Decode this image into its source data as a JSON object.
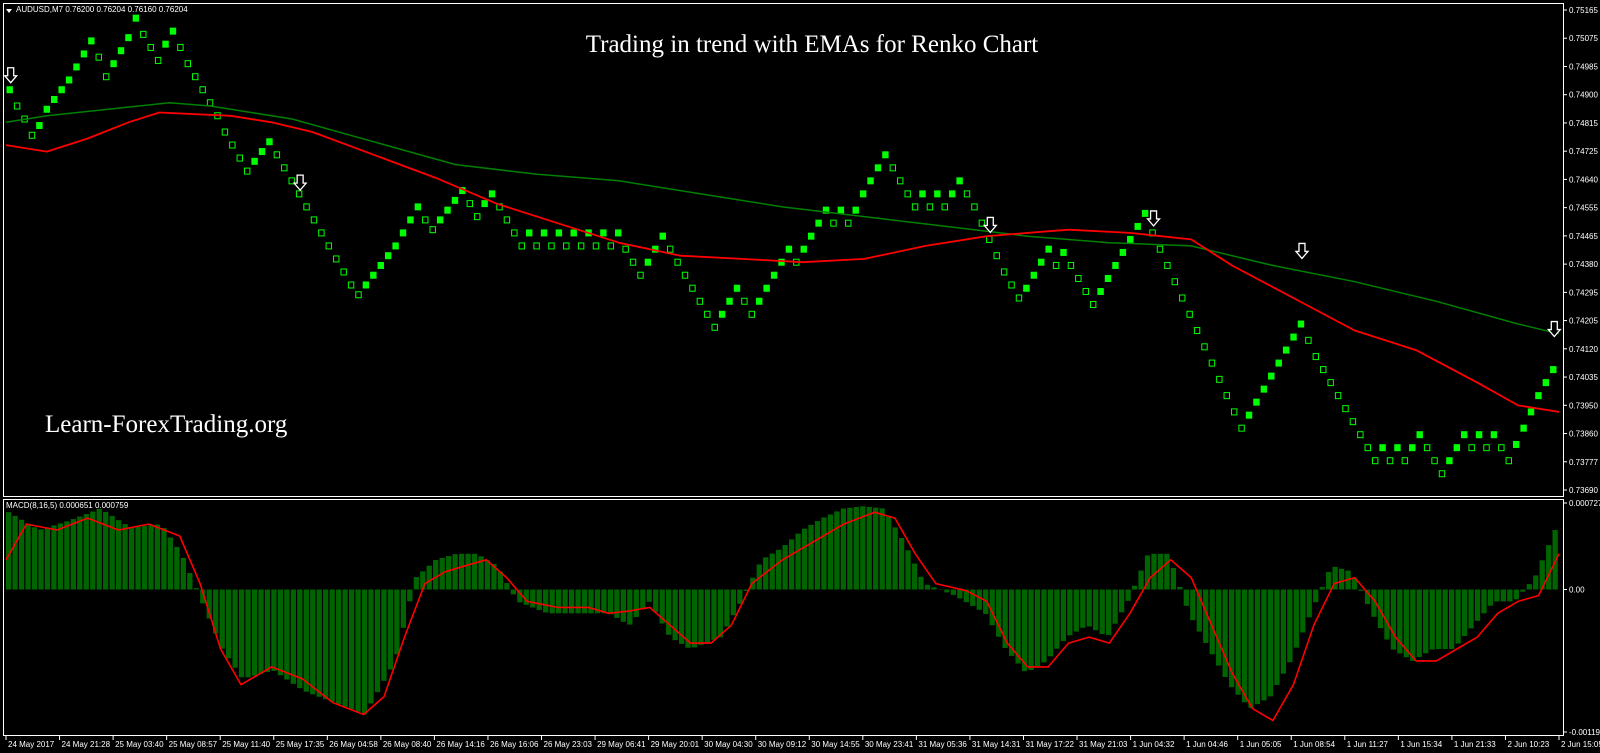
{
  "main_panel": {
    "symbol_header": "AUDUSD,M7  0.76200 0.76204 0.76160 0.76204",
    "title": "Trading in trend with EMAs for Renko Chart",
    "watermark": "Learn-ForexTrading.org",
    "y_ticks": [
      "0.75165",
      "0.75075",
      "0.74985",
      "0.74900",
      "0.74815",
      "0.74725",
      "0.74640",
      "0.74555",
      "0.74465",
      "0.74380",
      "0.74295",
      "0.74205",
      "0.74120",
      "0.74035",
      "0.73950",
      "0.73860",
      "0.73777",
      "0.73690"
    ]
  },
  "macd_panel": {
    "header": "MACD(8,16,5) 0.000651 0.000759",
    "y_ticks": [
      "0.000727",
      "0.00",
      "-0.001197"
    ]
  },
  "x_ticks": [
    "24 May 2017",
    "24 May 21:28",
    "25 May 03:40",
    "25 May 08:57",
    "25 May 11:40",
    "25 May 17:35",
    "26 May 04:58",
    "26 May 08:40",
    "26 May 14:16",
    "26 May 16:06",
    "26 May 23:03",
    "29 May 06:41",
    "29 May 20:01",
    "30 May 04:30",
    "30 May 09:12",
    "30 May 14:55",
    "30 May 23:41",
    "31 May 05:36",
    "31 May 14:31",
    "31 May 17:22",
    "31 May 21:03",
    "1 Jun 04:32",
    "1 Jun 04:46",
    "1 Jun 05:05",
    "1 Jun 08:54",
    "1 Jun 11:27",
    "1 Jun 15:34",
    "1 Jun 21:33",
    "2 Jun 10:23",
    "2 Jun 15:05"
  ],
  "colors": {
    "background": "#000000",
    "bull_brick": "#00ff00",
    "bear_brick": "#00ff00",
    "ema_fast": "#ff0000",
    "ema_slow": "#008000",
    "macd_histogram": "#006400",
    "macd_signal": "#ff0000",
    "signal_arrow": "#ffffff",
    "grid": "#ffffff"
  },
  "chart_data": [
    {
      "type": "renko",
      "symbol": "AUDUSD",
      "timeframe": "M7",
      "title": "Trading in trend with EMAs for Renko Chart",
      "ylim": [
        0.7369,
        0.75165
      ],
      "brick_size": 9e-05,
      "price_series": [
        0.7492,
        0.7487,
        0.7483,
        0.7478,
        0.7481,
        0.7486,
        0.7489,
        0.7492,
        0.7495,
        0.7499,
        0.7503,
        0.7507,
        0.7502,
        0.7496,
        0.75,
        0.7504,
        0.7508,
        0.7514,
        0.7509,
        0.7505,
        0.7501,
        0.7506,
        0.751,
        0.7505,
        0.75,
        0.7496,
        0.7492,
        0.7488,
        0.7484,
        0.7479,
        0.7475,
        0.7471,
        0.7467,
        0.747,
        0.7473,
        0.7476,
        0.7472,
        0.7468,
        0.7464,
        0.746,
        0.7456,
        0.7452,
        0.7448,
        0.7444,
        0.744,
        0.7436,
        0.7432,
        0.7429,
        0.7432,
        0.7435,
        0.7438,
        0.7441,
        0.7444,
        0.7448,
        0.7452,
        0.7456,
        0.7452,
        0.7449,
        0.7452,
        0.7455,
        0.7458,
        0.7461,
        0.7457,
        0.7453,
        0.7457,
        0.746,
        0.7456,
        0.7452,
        0.7448,
        0.7444,
        0.7448,
        0.7444,
        0.7448,
        0.7444,
        0.7448,
        0.7444,
        0.7448,
        0.7444,
        0.7448,
        0.7444,
        0.7448,
        0.7444,
        0.7448,
        0.7443,
        0.7439,
        0.7435,
        0.7439,
        0.7443,
        0.7447,
        0.7443,
        0.7439,
        0.7435,
        0.7431,
        0.7427,
        0.7423,
        0.7419,
        0.7423,
        0.7427,
        0.7431,
        0.7427,
        0.7423,
        0.7427,
        0.7431,
        0.7435,
        0.7439,
        0.7443,
        0.7439,
        0.7443,
        0.7447,
        0.7451,
        0.7455,
        0.7451,
        0.7455,
        0.7451,
        0.7455,
        0.746,
        0.7464,
        0.7468,
        0.7472,
        0.7468,
        0.7464,
        0.746,
        0.7456,
        0.746,
        0.7456,
        0.746,
        0.7456,
        0.746,
        0.7464,
        0.746,
        0.7456,
        0.7451,
        0.7446,
        0.7441,
        0.7436,
        0.7432,
        0.7428,
        0.7431,
        0.7435,
        0.7439,
        0.7443,
        0.7438,
        0.7442,
        0.7438,
        0.7434,
        0.743,
        0.7426,
        0.743,
        0.7434,
        0.7438,
        0.7442,
        0.7446,
        0.745,
        0.7454,
        0.7448,
        0.7443,
        0.7438,
        0.7433,
        0.7428,
        0.7423,
        0.7418,
        0.7413,
        0.7408,
        0.7403,
        0.7398,
        0.7393,
        0.7388,
        0.7392,
        0.7396,
        0.74,
        0.7404,
        0.7408,
        0.7412,
        0.7416,
        0.742,
        0.7415,
        0.741,
        0.7406,
        0.7402,
        0.7398,
        0.7394,
        0.739,
        0.7386,
        0.7382,
        0.7378,
        0.7382,
        0.7378,
        0.7382,
        0.7378,
        0.7382,
        0.7386,
        0.7382,
        0.7378,
        0.7374,
        0.7378,
        0.7382,
        0.7386,
        0.7382,
        0.7386,
        0.7382,
        0.7386,
        0.7382,
        0.7378,
        0.7383,
        0.7388,
        0.7393,
        0.7398,
        0.7402,
        0.7406
      ],
      "ema_fast": [
        [
          0,
          0.7475
        ],
        [
          40,
          0.7473
        ],
        [
          80,
          0.7477
        ],
        [
          120,
          0.7482
        ],
        [
          150,
          0.7485
        ],
        [
          220,
          0.7484
        ],
        [
          260,
          0.7482
        ],
        [
          300,
          0.7479
        ],
        [
          360,
          0.7472
        ],
        [
          420,
          0.7465
        ],
        [
          480,
          0.7457
        ],
        [
          540,
          0.7451
        ],
        [
          600,
          0.7445
        ],
        [
          660,
          0.7441
        ],
        [
          720,
          0.744
        ],
        [
          780,
          0.7439
        ],
        [
          840,
          0.744
        ],
        [
          900,
          0.7444
        ],
        [
          960,
          0.7447
        ],
        [
          1000,
          0.7448
        ],
        [
          1040,
          0.7449
        ],
        [
          1100,
          0.7448
        ],
        [
          1160,
          0.7446
        ],
        [
          1200,
          0.7438
        ],
        [
          1260,
          0.7428
        ],
        [
          1320,
          0.7418
        ],
        [
          1380,
          0.7412
        ],
        [
          1440,
          0.7402
        ],
        [
          1480,
          0.7395
        ],
        [
          1520,
          0.7393
        ]
      ],
      "ema_slow": [
        [
          0,
          0.7482
        ],
        [
          40,
          0.7484
        ],
        [
          100,
          0.7486
        ],
        [
          160,
          0.7488
        ],
        [
          200,
          0.7487
        ],
        [
          280,
          0.7483
        ],
        [
          360,
          0.7476
        ],
        [
          440,
          0.7469
        ],
        [
          520,
          0.7466
        ],
        [
          600,
          0.7464
        ],
        [
          680,
          0.746
        ],
        [
          760,
          0.7456
        ],
        [
          840,
          0.7453
        ],
        [
          920,
          0.745
        ],
        [
          1000,
          0.7447
        ],
        [
          1080,
          0.7445
        ],
        [
          1160,
          0.7444
        ],
        [
          1240,
          0.7438
        ],
        [
          1320,
          0.7433
        ],
        [
          1400,
          0.7427
        ],
        [
          1480,
          0.742
        ],
        [
          1520,
          0.7417
        ]
      ],
      "sell_arrows": [
        0.7492,
        0.7459,
        0.7446,
        0.7448,
        0.7438,
        0.7414
      ]
    },
    {
      "type": "macd",
      "name": "MACD(8,16,5)",
      "params": [
        8,
        16,
        5
      ],
      "ylim": [
        -0.001197,
        0.000727
      ],
      "histogram": [
        [
          0,
          0.00065
        ],
        [
          30,
          0.0005
        ],
        [
          60,
          0.00058
        ],
        [
          90,
          0.00068
        ],
        [
          120,
          0.00052
        ],
        [
          150,
          0.00055
        ],
        [
          170,
          0.0003
        ],
        [
          190,
          -0.0001
        ],
        [
          210,
          -0.0005
        ],
        [
          230,
          -0.00075
        ],
        [
          260,
          -0.00068
        ],
        [
          290,
          -0.00085
        ],
        [
          320,
          -0.00095
        ],
        [
          350,
          -0.00105
        ],
        [
          380,
          -0.0006
        ],
        [
          400,
          0.0001
        ],
        [
          420,
          0.00025
        ],
        [
          440,
          0.0003
        ],
        [
          460,
          0.0003
        ],
        [
          480,
          0.0002
        ],
        [
          500,
          -0.0001
        ],
        [
          530,
          -0.0002
        ],
        [
          560,
          -0.0002
        ],
        [
          590,
          -0.0002
        ],
        [
          610,
          -0.0003
        ],
        [
          630,
          -0.0001
        ],
        [
          650,
          -0.0004
        ],
        [
          670,
          -0.0005
        ],
        [
          700,
          -0.0004
        ],
        [
          720,
          -0.0001
        ],
        [
          740,
          0.00025
        ],
        [
          760,
          0.00035
        ],
        [
          780,
          0.0005
        ],
        [
          800,
          0.0006
        ],
        [
          820,
          0.00068
        ],
        [
          840,
          0.0007
        ],
        [
          860,
          0.00068
        ],
        [
          880,
          0.0004
        ],
        [
          900,
          5e-05
        ],
        [
          930,
          -5e-05
        ],
        [
          960,
          -0.0002
        ],
        [
          980,
          -0.0005
        ],
        [
          1000,
          -0.0007
        ],
        [
          1020,
          -0.0006
        ],
        [
          1040,
          -0.0004
        ],
        [
          1060,
          -0.0003
        ],
        [
          1080,
          -0.0004
        ],
        [
          1100,
          -0.0001
        ],
        [
          1120,
          0.0003
        ],
        [
          1140,
          0.0003
        ],
        [
          1160,
          -0.0002
        ],
        [
          1180,
          -0.0005
        ],
        [
          1200,
          -0.0008
        ],
        [
          1220,
          -0.001
        ],
        [
          1240,
          -0.0009
        ],
        [
          1260,
          -0.0006
        ],
        [
          1280,
          -0.0002
        ],
        [
          1300,
          0.0002
        ],
        [
          1320,
          0.00015
        ],
        [
          1340,
          -0.0002
        ],
        [
          1360,
          -0.0005
        ],
        [
          1380,
          -0.0006
        ],
        [
          1400,
          -0.0005
        ],
        [
          1420,
          -0.0005
        ],
        [
          1440,
          -0.0003
        ],
        [
          1460,
          -0.0001
        ],
        [
          1480,
          -0.0001
        ],
        [
          1500,
          0.0001
        ],
        [
          1520,
          0.0005
        ]
      ],
      "signal": [
        [
          0,
          0.00025
        ],
        [
          20,
          0.00055
        ],
        [
          50,
          0.0005
        ],
        [
          80,
          0.0006
        ],
        [
          110,
          0.0005
        ],
        [
          140,
          0.00055
        ],
        [
          170,
          0.00045
        ],
        [
          190,
          5e-05
        ],
        [
          210,
          -0.0005
        ],
        [
          230,
          -0.0008
        ],
        [
          260,
          -0.00065
        ],
        [
          290,
          -0.00075
        ],
        [
          320,
          -0.00095
        ],
        [
          350,
          -0.00105
        ],
        [
          370,
          -0.0009
        ],
        [
          390,
          -0.0004
        ],
        [
          410,
          5e-05
        ],
        [
          430,
          0.00015
        ],
        [
          450,
          0.0002
        ],
        [
          470,
          0.00025
        ],
        [
          490,
          0.0001
        ],
        [
          510,
          -0.0001
        ],
        [
          540,
          -0.00015
        ],
        [
          570,
          -0.00015
        ],
        [
          590,
          -0.0002
        ],
        [
          610,
          -0.00018
        ],
        [
          630,
          -0.00015
        ],
        [
          650,
          -0.0003
        ],
        [
          670,
          -0.00045
        ],
        [
          690,
          -0.00045
        ],
        [
          710,
          -0.0003
        ],
        [
          730,
          5e-05
        ],
        [
          760,
          0.00025
        ],
        [
          790,
          0.0004
        ],
        [
          820,
          0.00055
        ],
        [
          850,
          0.00065
        ],
        [
          870,
          0.0006
        ],
        [
          890,
          0.0003
        ],
        [
          910,
          5e-05
        ],
        [
          940,
          -1e-05
        ],
        [
          960,
          -0.0001
        ],
        [
          980,
          -0.00045
        ],
        [
          1000,
          -0.00065
        ],
        [
          1020,
          -0.00065
        ],
        [
          1040,
          -0.00045
        ],
        [
          1060,
          -0.0004
        ],
        [
          1080,
          -0.00045
        ],
        [
          1100,
          -0.0002
        ],
        [
          1120,
          0.0001
        ],
        [
          1140,
          0.00025
        ],
        [
          1160,
          0.0001
        ],
        [
          1180,
          -0.0003
        ],
        [
          1200,
          -0.0007
        ],
        [
          1220,
          -0.001
        ],
        [
          1240,
          -0.0011
        ],
        [
          1260,
          -0.0008
        ],
        [
          1280,
          -0.0003
        ],
        [
          1300,
          5e-05
        ],
        [
          1320,
          0.0001
        ],
        [
          1340,
          -0.0001
        ],
        [
          1360,
          -0.0004
        ],
        [
          1380,
          -0.0006
        ],
        [
          1400,
          -0.0006
        ],
        [
          1420,
          -0.0005
        ],
        [
          1440,
          -0.0004
        ],
        [
          1460,
          -0.0002
        ],
        [
          1480,
          -0.0001
        ],
        [
          1500,
          -5e-05
        ],
        [
          1520,
          0.0003
        ]
      ]
    }
  ]
}
